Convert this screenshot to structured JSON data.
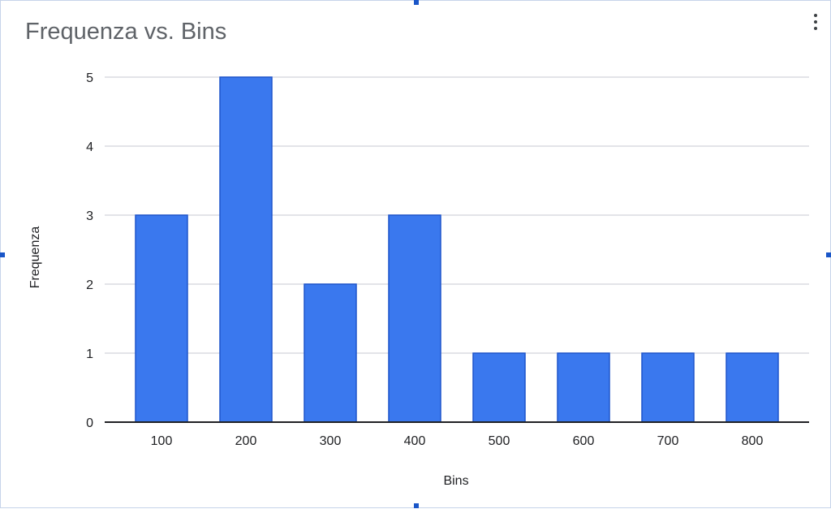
{
  "chart_data": {
    "type": "bar",
    "title": "Frequenza vs. Bins",
    "xlabel": "Bins",
    "ylabel": "Frequenza",
    "categories": [
      "100",
      "200",
      "300",
      "400",
      "500",
      "600",
      "700",
      "800"
    ],
    "values": [
      3,
      5,
      2,
      3,
      1,
      1,
      1,
      1
    ],
    "ylim": [
      0,
      5
    ],
    "yticks": [
      "0",
      "1",
      "2",
      "3",
      "4",
      "5"
    ],
    "grid": true,
    "legend": "none",
    "bar_color": "#3a78ee",
    "bar_edge_color": "#1e55cc",
    "gridline_color": "#dadce0",
    "axis_color": "#202124"
  },
  "icons": {
    "menu": "more-vert-icon"
  }
}
